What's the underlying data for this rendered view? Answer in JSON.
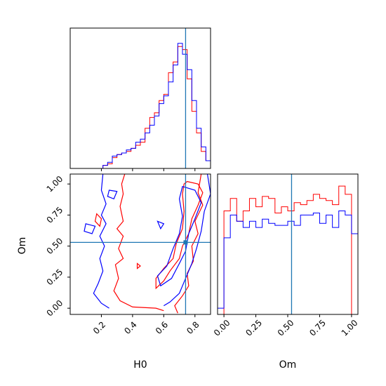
{
  "colors": {
    "red": "#ff0000",
    "blue": "#0000ff",
    "truth": "#1f77b4",
    "frame": "#000000"
  },
  "chart_data": [
    {
      "panel": "H0-marginal",
      "type": "histogram",
      "xlim": [
        0.0,
        0.9
      ],
      "truth": 0.74,
      "series": [
        {
          "color": "red",
          "edges": [
            0.0,
            0.03,
            0.06,
            0.09,
            0.12,
            0.15,
            0.18,
            0.21,
            0.24,
            0.27,
            0.3,
            0.33,
            0.36,
            0.39,
            0.42,
            0.45,
            0.48,
            0.51,
            0.54,
            0.57,
            0.6,
            0.63,
            0.66,
            0.69,
            0.72,
            0.75,
            0.78,
            0.81,
            0.84,
            0.87,
            0.9
          ],
          "heights": [
            0,
            0,
            0,
            0,
            0,
            0,
            0,
            0.02,
            0.03,
            0.07,
            0.09,
            0.1,
            0.11,
            0.13,
            0.15,
            0.17,
            0.26,
            0.33,
            0.36,
            0.44,
            0.48,
            0.62,
            0.69,
            0.79,
            0.77,
            0.58,
            0.37,
            0.23,
            0.11,
            0.05
          ]
        },
        {
          "color": "blue",
          "edges": [
            0.0,
            0.03,
            0.06,
            0.09,
            0.12,
            0.15,
            0.18,
            0.21,
            0.24,
            0.27,
            0.3,
            0.33,
            0.36,
            0.39,
            0.42,
            0.45,
            0.48,
            0.51,
            0.54,
            0.57,
            0.6,
            0.63,
            0.66,
            0.69,
            0.72,
            0.75,
            0.78,
            0.81,
            0.84,
            0.87,
            0.9
          ],
          "heights": [
            0,
            0,
            0,
            0,
            0,
            0,
            0,
            0.02,
            0.04,
            0.08,
            0.09,
            0.1,
            0.12,
            0.13,
            0.17,
            0.19,
            0.23,
            0.28,
            0.34,
            0.42,
            0.47,
            0.56,
            0.67,
            0.81,
            0.74,
            0.64,
            0.44,
            0.26,
            0.14,
            0.05
          ]
        }
      ]
    },
    {
      "panel": "Om-marginal",
      "type": "histogram",
      "xlim": [
        -0.05,
        1.05
      ],
      "xlabel": "Om",
      "xticks": [
        "0.00",
        "0.25",
        "0.50",
        "0.75",
        "1.00"
      ],
      "truth": 0.53,
      "series": [
        {
          "color": "red",
          "edges": [
            0.0,
            0.05,
            0.1,
            0.15,
            0.2,
            0.25,
            0.3,
            0.35,
            0.4,
            0.45,
            0.5,
            0.55,
            0.6,
            0.65,
            0.7,
            0.75,
            0.8,
            0.85,
            0.9,
            0.95,
            1.0
          ],
          "heights": [
            0.5,
            0.56,
            0.45,
            0.5,
            0.56,
            0.52,
            0.57,
            0.56,
            0.49,
            0.52,
            0.5,
            0.54,
            0.53,
            0.55,
            0.58,
            0.56,
            0.55,
            0.53,
            0.62,
            0.58
          ]
        },
        {
          "color": "blue",
          "edges": [
            -0.05,
            0.0,
            0.05,
            0.1,
            0.15,
            0.2,
            0.25,
            0.3,
            0.35,
            0.4,
            0.45,
            0.5,
            0.55,
            0.6,
            0.65,
            0.7,
            0.75,
            0.8,
            0.85,
            0.9,
            0.95,
            1.0,
            1.05
          ],
          "heights": [
            0.03,
            0.37,
            0.48,
            0.45,
            0.42,
            0.45,
            0.42,
            0.46,
            0.44,
            0.43,
            0.43,
            0.45,
            0.43,
            0.48,
            0.48,
            0.49,
            0.44,
            0.48,
            0.42,
            0.5,
            0.48,
            0.39,
            0.03
          ]
        }
      ]
    },
    {
      "panel": "H0-Om-2D",
      "type": "contour",
      "xlim": [
        0.0,
        0.9
      ],
      "ylim": [
        -0.05,
        1.08
      ],
      "xlabel": "H0",
      "ylabel": "Om",
      "xticks": [
        "0.2",
        "0.4",
        "0.6",
        "0.8"
      ],
      "yticks": [
        "0.00",
        "0.25",
        "0.50",
        "0.75",
        "1.00"
      ],
      "truth": {
        "x": 0.74,
        "y": 0.53
      },
      "series": [
        {
          "color": "red",
          "contours": [
            {
              "closed": false,
              "pts": [
                [
                  0.35,
                  1.08
                ],
                [
                  0.33,
                  1.0
                ],
                [
                  0.34,
                  0.92
                ],
                [
                  0.32,
                  0.82
                ],
                [
                  0.34,
                  0.7
                ],
                [
                  0.3,
                  0.64
                ],
                [
                  0.34,
                  0.58
                ],
                [
                  0.31,
                  0.48
                ],
                [
                  0.34,
                  0.4
                ],
                [
                  0.29,
                  0.35
                ],
                [
                  0.31,
                  0.24
                ],
                [
                  0.28,
                  0.14
                ],
                [
                  0.32,
                  0.06
                ],
                [
                  0.4,
                  0.01
                ],
                [
                  0.55,
                  0.0
                ],
                [
                  0.6,
                  -0.02
                ]
              ]
            },
            {
              "closed": false,
              "pts": [
                [
                  0.84,
                  1.08
                ],
                [
                  0.82,
                  0.93
                ],
                [
                  0.85,
                  0.83
                ],
                [
                  0.8,
                  0.7
                ],
                [
                  0.82,
                  0.6
                ],
                [
                  0.78,
                  0.5
                ],
                [
                  0.79,
                  0.38
                ],
                [
                  0.75,
                  0.28
                ],
                [
                  0.76,
                  0.18
                ],
                [
                  0.72,
                  0.1
                ],
                [
                  0.67,
                  0.02
                ],
                [
                  0.69,
                  -0.04
                ]
              ]
            },
            {
              "closed": true,
              "pts": [
                [
                  0.75,
                  1.02
                ],
                [
                  0.82,
                  1.0
                ],
                [
                  0.85,
                  0.93
                ],
                [
                  0.82,
                  0.83
                ],
                [
                  0.78,
                  0.72
                ],
                [
                  0.76,
                  0.6
                ],
                [
                  0.72,
                  0.5
                ],
                [
                  0.7,
                  0.4
                ],
                [
                  0.64,
                  0.3
                ],
                [
                  0.6,
                  0.22
                ],
                [
                  0.55,
                  0.16
                ],
                [
                  0.55,
                  0.24
                ],
                [
                  0.6,
                  0.32
                ],
                [
                  0.66,
                  0.4
                ],
                [
                  0.68,
                  0.52
                ],
                [
                  0.72,
                  0.64
                ],
                [
                  0.73,
                  0.78
                ],
                [
                  0.72,
                  0.92
                ],
                [
                  0.73,
                  1.0
                ]
              ]
            },
            {
              "closed": true,
              "pts": [
                [
                  0.17,
                  0.76
                ],
                [
                  0.2,
                  0.72
                ],
                [
                  0.19,
                  0.66
                ],
                [
                  0.16,
                  0.7
                ]
              ]
            },
            {
              "closed": true,
              "pts": [
                [
                  0.43,
                  0.36
                ],
                [
                  0.45,
                  0.34
                ],
                [
                  0.43,
                  0.32
                ]
              ]
            }
          ]
        },
        {
          "color": "blue",
          "contours": [
            {
              "closed": false,
              "pts": [
                [
                  0.21,
                  1.08
                ],
                [
                  0.2,
                  0.95
                ],
                [
                  0.23,
                  0.84
                ],
                [
                  0.2,
                  0.75
                ],
                [
                  0.23,
                  0.68
                ],
                [
                  0.19,
                  0.58
                ],
                [
                  0.22,
                  0.5
                ],
                [
                  0.19,
                  0.4
                ],
                [
                  0.21,
                  0.3
                ],
                [
                  0.18,
                  0.2
                ],
                [
                  0.15,
                  0.12
                ],
                [
                  0.2,
                  0.04
                ],
                [
                  0.25,
                  0.0
                ]
              ]
            },
            {
              "closed": false,
              "pts": [
                [
                  0.88,
                  1.08
                ],
                [
                  0.9,
                  0.92
                ],
                [
                  0.86,
                  0.78
                ],
                [
                  0.84,
                  0.62
                ],
                [
                  0.81,
                  0.48
                ],
                [
                  0.78,
                  0.36
                ],
                [
                  0.74,
                  0.24
                ],
                [
                  0.7,
                  0.12
                ],
                [
                  0.64,
                  0.05
                ],
                [
                  0.6,
                  0.02
                ]
              ]
            },
            {
              "closed": true,
              "pts": [
                [
                  0.72,
                  0.98
                ],
                [
                  0.8,
                  0.95
                ],
                [
                  0.84,
                  0.85
                ],
                [
                  0.8,
                  0.72
                ],
                [
                  0.76,
                  0.6
                ],
                [
                  0.74,
                  0.46
                ],
                [
                  0.7,
                  0.36
                ],
                [
                  0.65,
                  0.24
                ],
                [
                  0.58,
                  0.18
                ],
                [
                  0.56,
                  0.26
                ],
                [
                  0.62,
                  0.34
                ],
                [
                  0.66,
                  0.48
                ],
                [
                  0.7,
                  0.6
                ],
                [
                  0.72,
                  0.74
                ],
                [
                  0.7,
                  0.88
                ]
              ]
            },
            {
              "closed": true,
              "pts": [
                [
                  0.1,
                  0.68
                ],
                [
                  0.16,
                  0.66
                ],
                [
                  0.14,
                  0.6
                ],
                [
                  0.09,
                  0.62
                ]
              ]
            },
            {
              "closed": true,
              "pts": [
                [
                  0.25,
                  0.95
                ],
                [
                  0.3,
                  0.94
                ],
                [
                  0.28,
                  0.88
                ],
                [
                  0.24,
                  0.9
                ]
              ]
            },
            {
              "closed": true,
              "pts": [
                [
                  0.56,
                  0.7
                ],
                [
                  0.6,
                  0.68
                ],
                [
                  0.58,
                  0.64
                ]
              ]
            }
          ]
        }
      ]
    }
  ]
}
